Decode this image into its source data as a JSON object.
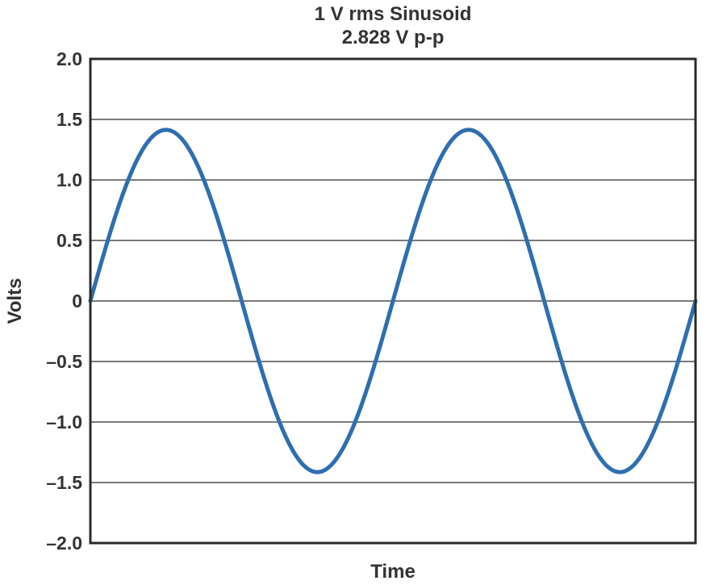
{
  "chart_data": {
    "type": "line",
    "title": "1 V rms Sinusoid",
    "subtitle": "2.828 V p-p",
    "xlabel": "Time",
    "ylabel": "Volts",
    "ylim": [
      -2.0,
      2.0
    ],
    "y_ticks": [
      2.0,
      1.5,
      1.0,
      0.5,
      0,
      -0.5,
      -1.0,
      -1.5,
      -2.0
    ],
    "y_tick_labels": [
      "2.0",
      "1.5",
      "1.0",
      "0.5",
      "0",
      "–0.5",
      "–1.0",
      "–1.5",
      "–2.0"
    ],
    "x_tick_labels_shown": false,
    "grid": "horizontal",
    "legend": "none",
    "series": [
      {
        "amplitude": 1.414,
        "cycles": 2,
        "color": "#2f6eb0",
        "x": [
          0,
          0.125,
          0.25,
          0.375,
          0.5,
          0.625,
          0.75,
          0.875,
          1.0,
          1.125,
          1.25,
          1.375,
          1.5,
          1.625,
          1.75,
          1.875,
          2.0
        ],
        "values": [
          0,
          1.0,
          1.41,
          1.0,
          0,
          -1.0,
          -1.41,
          -1.0,
          0,
          1.0,
          1.41,
          1.0,
          0,
          -1.0,
          -1.41,
          -1.0,
          0
        ]
      }
    ]
  }
}
